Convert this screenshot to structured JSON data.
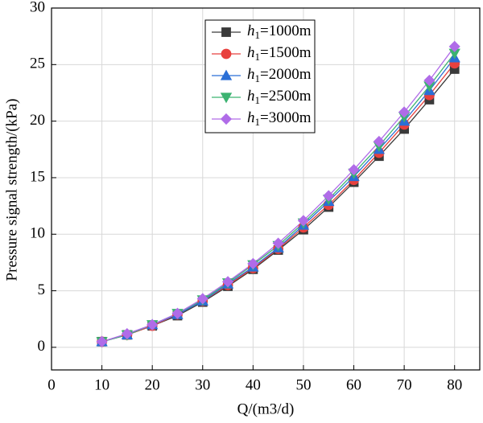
{
  "chart_data": {
    "type": "line",
    "xlabel": "Q/(m3/d)",
    "ylabel": "Pressure signal strength/(kPa)",
    "x": [
      10,
      15,
      20,
      25,
      30,
      35,
      40,
      45,
      50,
      55,
      60,
      65,
      70,
      75,
      80
    ],
    "series": [
      {
        "name": "h1=1000m",
        "color": "#3a3a3a",
        "marker": "square",
        "values": [
          0.5,
          1.1,
          1.9,
          2.8,
          4.0,
          5.4,
          6.9,
          8.6,
          10.4,
          12.4,
          14.6,
          16.9,
          19.3,
          21.9,
          24.6
        ]
      },
      {
        "name": "h1=1500m",
        "color": "#e8413e",
        "marker": "circle",
        "values": [
          0.5,
          1.1,
          1.9,
          2.9,
          4.1,
          5.5,
          7.0,
          8.7,
          10.6,
          12.6,
          14.8,
          17.2,
          19.7,
          22.3,
          25.1
        ]
      },
      {
        "name": "h1=2000m",
        "color": "#2b6fd6",
        "marker": "triangle-up",
        "values": [
          0.5,
          1.1,
          2.0,
          2.9,
          4.1,
          5.6,
          7.1,
          8.8,
          10.8,
          12.9,
          15.1,
          17.5,
          20.0,
          22.7,
          25.6
        ]
      },
      {
        "name": "h1=2500m",
        "color": "#3cb371",
        "marker": "triangle-down",
        "values": [
          0.5,
          1.1,
          2.0,
          3.0,
          4.2,
          5.7,
          7.3,
          9.0,
          11.0,
          13.1,
          15.4,
          17.8,
          20.4,
          23.1,
          26.0
        ]
      },
      {
        "name": "h1=3000m",
        "color": "#b06ce8",
        "marker": "diamond",
        "values": [
          0.5,
          1.2,
          2.0,
          3.0,
          4.3,
          5.8,
          7.4,
          9.2,
          11.2,
          13.4,
          15.7,
          18.2,
          20.8,
          23.6,
          26.6
        ]
      }
    ],
    "xlim": [
      0,
      85
    ],
    "xticks": [
      0,
      10,
      20,
      30,
      40,
      50,
      60,
      70,
      80
    ],
    "ylim": [
      -2,
      30
    ],
    "yticks": [
      0,
      5,
      10,
      15,
      20,
      25,
      30
    ],
    "grid": true,
    "legend": "upper center"
  }
}
